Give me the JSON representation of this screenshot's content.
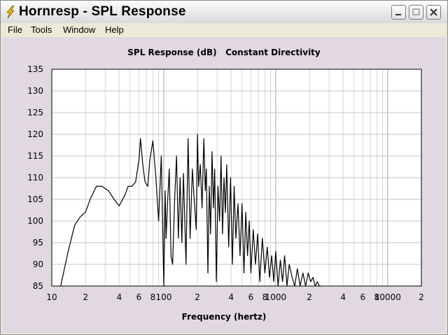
{
  "window": {
    "title": "Hornresp - SPL Response"
  },
  "menu": {
    "items": [
      "File",
      "Tools",
      "Window",
      "Help"
    ]
  },
  "chart": {
    "title_left": "SPL Response (dB)",
    "title_right": "Constant Directivity",
    "xlabel": "Frequency (hertz)"
  },
  "colors": {
    "plot_bg": "#ffffff",
    "client_bg": "#e2d8e2",
    "curve": "#000000",
    "grid": "#c8c8c8"
  },
  "chart_data": {
    "type": "line",
    "title": "SPL Response (dB)   Constant Directivity",
    "xlabel": "Frequency (hertz)",
    "ylabel": "",
    "xscale": "log",
    "xlim": [
      10,
      20000
    ],
    "ylim": [
      85,
      135
    ],
    "grid": true,
    "y_ticks": [
      "135",
      "130",
      "125",
      "120",
      "115",
      "110",
      "105",
      "100",
      "95",
      "90",
      "85"
    ],
    "x_ticks": [
      "10",
      "2",
      "4",
      "6",
      "8",
      "100",
      "2",
      "4",
      "6",
      "8",
      "1000",
      "2",
      "4",
      "6",
      "8",
      "10000",
      "2"
    ],
    "x_tick_values": [
      10,
      20,
      40,
      60,
      80,
      100,
      200,
      400,
      600,
      800,
      1000,
      2000,
      4000,
      6000,
      8000,
      10000,
      20000
    ],
    "series": [
      {
        "x": [
          12,
          14,
          16,
          18,
          20,
          22,
          25,
          28,
          32,
          36,
          40,
          45,
          48,
          52,
          56,
          60,
          62,
          65,
          68,
          72,
          75,
          80,
          85,
          90,
          95,
          100,
          103,
          105,
          108,
          112,
          116,
          120,
          125,
          130,
          135,
          140,
          145,
          150,
          158,
          165,
          172,
          180,
          188,
          195,
          200,
          205,
          212,
          220,
          228,
          235,
          240,
          248,
          255,
          262,
          270,
          278,
          285,
          295,
          305,
          315,
          325,
          335,
          345,
          355,
          365,
          380,
          395,
          410,
          425,
          440,
          460,
          480,
          500,
          520,
          540,
          560,
          580,
          600,
          630,
          660,
          690,
          720,
          760,
          800,
          840,
          880,
          920,
          960,
          1000,
          1050,
          1100,
          1150,
          1200,
          1260,
          1320,
          1400,
          1480,
          1560,
          1650,
          1750,
          1850,
          1950,
          2050,
          2150,
          2250,
          2350,
          2450,
          2550
        ],
        "y": [
          85,
          93,
          99,
          101,
          102,
          105,
          108,
          108,
          107,
          105,
          103.5,
          106,
          108,
          108,
          109,
          114,
          119,
          113,
          109,
          108,
          114,
          118.5,
          110,
          100,
          115,
          85,
          107,
          96,
          104,
          112,
          92,
          90,
          105,
          115,
          96,
          110,
          95,
          111,
          90,
          119,
          96,
          112,
          104,
          98,
          120,
          108,
          113,
          103,
          119,
          107,
          112,
          88,
          108,
          97,
          116,
          103,
          112,
          86,
          108,
          100,
          115,
          97,
          110,
          102,
          113,
          94,
          110,
          90,
          108,
          96,
          104,
          92,
          104,
          88,
          102,
          92,
          100,
          88,
          98,
          90,
          97,
          86,
          96,
          88,
          94,
          87,
          92,
          86,
          93,
          85,
          91,
          86,
          92,
          85,
          90,
          87,
          85,
          89,
          85,
          88,
          85,
          88,
          86,
          87,
          85,
          86,
          85,
          85
        ]
      }
    ]
  }
}
